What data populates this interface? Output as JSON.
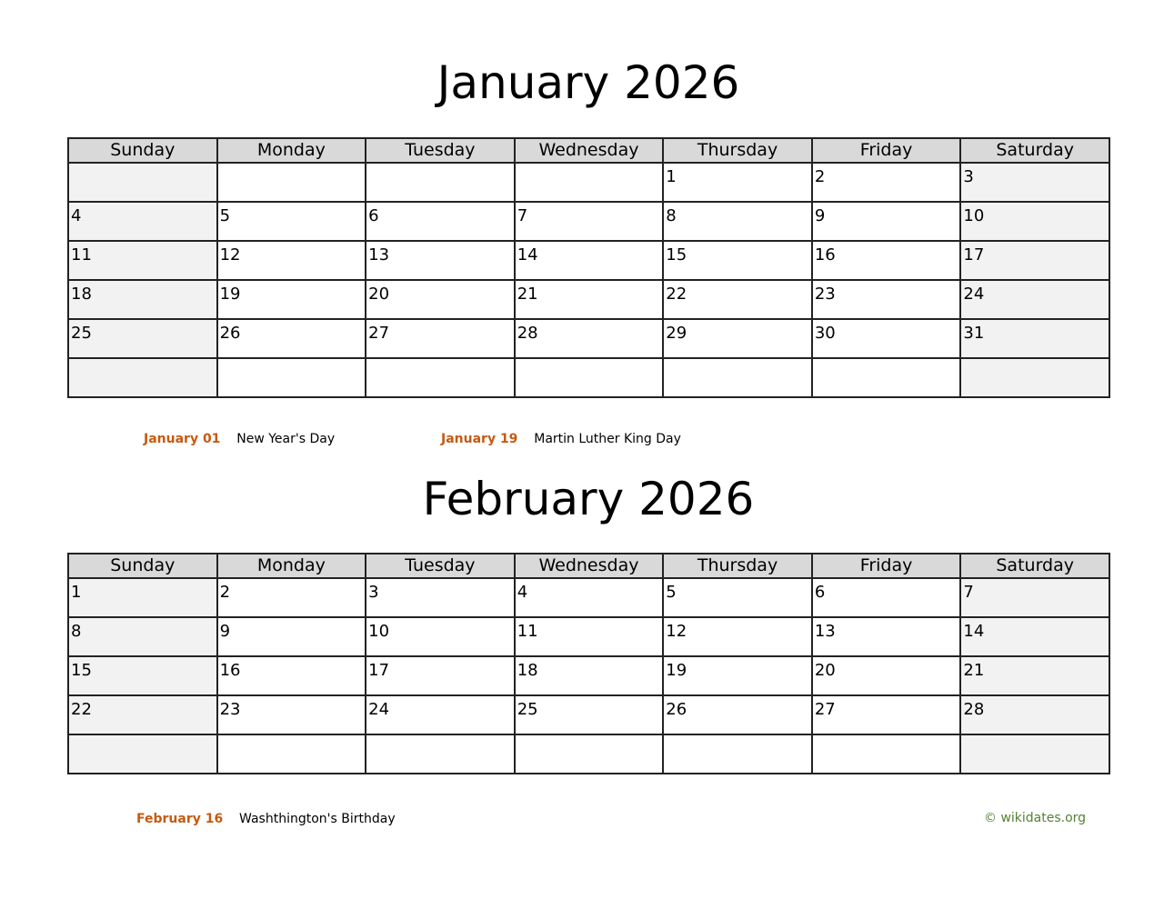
{
  "weekdays": [
    "Sunday",
    "Monday",
    "Tuesday",
    "Wednesday",
    "Thursday",
    "Friday",
    "Saturday"
  ],
  "months": [
    {
      "title": "January 2026",
      "weeks": [
        [
          "",
          "",
          "",
          "",
          "1",
          "2",
          "3"
        ],
        [
          "4",
          "5",
          "6",
          "7",
          "8",
          "9",
          "10"
        ],
        [
          "11",
          "12",
          "13",
          "14",
          "15",
          "16",
          "17"
        ],
        [
          "18",
          "19",
          "20",
          "21",
          "22",
          "23",
          "24"
        ],
        [
          "25",
          "26",
          "27",
          "28",
          "29",
          "30",
          "31"
        ],
        [
          "",
          "",
          "",
          "",
          "",
          "",
          ""
        ]
      ],
      "holidays": [
        {
          "date": "January 01",
          "name": "New Year's Day"
        },
        {
          "date": "January 19",
          "name": "Martin Luther King Day"
        }
      ]
    },
    {
      "title": "February 2026",
      "weeks": [
        [
          "1",
          "2",
          "3",
          "4",
          "5",
          "6",
          "7"
        ],
        [
          "8",
          "9",
          "10",
          "11",
          "12",
          "13",
          "14"
        ],
        [
          "15",
          "16",
          "17",
          "18",
          "19",
          "20",
          "21"
        ],
        [
          "22",
          "23",
          "24",
          "25",
          "26",
          "27",
          "28"
        ],
        [
          "",
          "",
          "",
          "",
          "",
          "",
          ""
        ]
      ],
      "holidays": [
        {
          "date": "February 16",
          "name": "Washthington's Birthday"
        }
      ]
    }
  ],
  "credit": "© wikidates.org",
  "colors": {
    "holiday_date": "#c55a11",
    "credit": "#548235",
    "header_bg": "#d9d9d9",
    "weekend_bg": "#f2f2f2"
  }
}
